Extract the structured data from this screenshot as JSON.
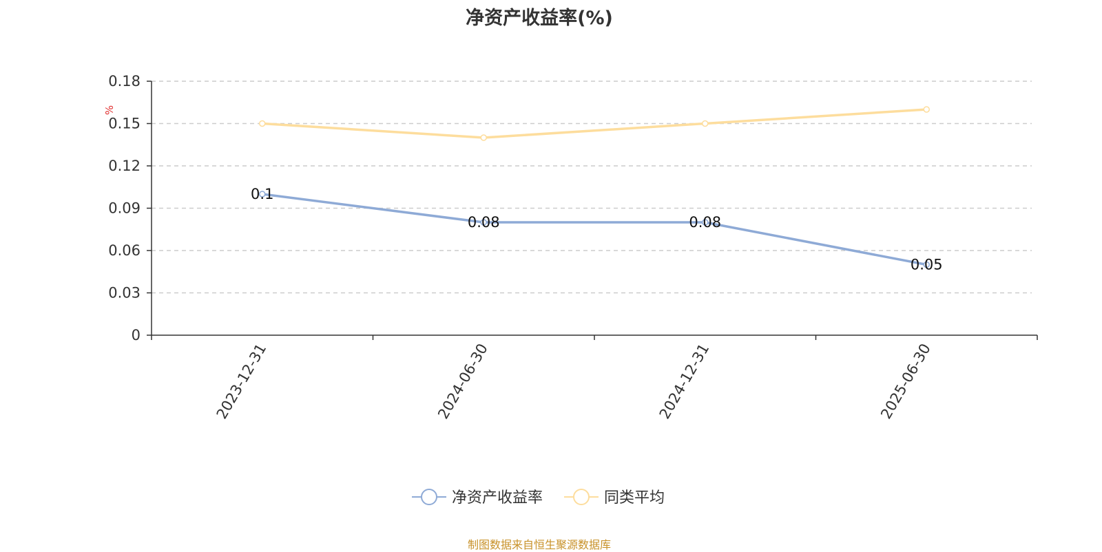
{
  "chart_data": {
    "type": "line",
    "title": "净资产收益率(%)",
    "unit_label": "%",
    "categories": [
      "2023-12-31",
      "2024-06-30",
      "2024-12-31",
      "2025-06-30"
    ],
    "yticks": [
      "0",
      "0.03",
      "0.06",
      "0.09",
      "0.12",
      "0.15",
      "0.18"
    ],
    "ylim": [
      0,
      0.18
    ],
    "grid": true,
    "legend_position": "bottom",
    "series": [
      {
        "name": "净资产收益率",
        "values": [
          0.1,
          0.08,
          0.08,
          0.05
        ],
        "labels": [
          "0.1",
          "0.08",
          "0.08",
          "0.05"
        ],
        "color": "#8eaad6"
      },
      {
        "name": "同类平均",
        "values": [
          0.15,
          0.14,
          0.15,
          0.16
        ],
        "color": "#fddd9d"
      }
    ],
    "source_note": "制图数据来自恒生聚源数据库"
  }
}
